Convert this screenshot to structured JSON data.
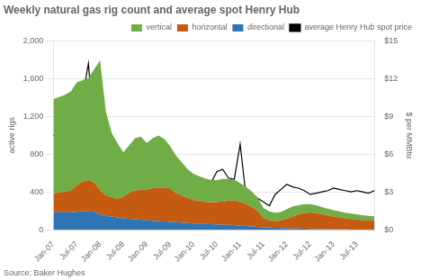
{
  "chart_data": {
    "type": "area",
    "title": "Weekly natural gas rig count and average spot Henry Hub",
    "ylabel": "active rigs",
    "y2label": "$ per MMBtu",
    "annotations": [
      "Source: Baker Hughes"
    ],
    "stacked": true,
    "grid": true,
    "legend": "upper right",
    "categories": [
      "Jan-07",
      null,
      null,
      null,
      "Jul-07",
      null,
      null,
      null,
      "Jan-08",
      null,
      null,
      null,
      "Jul-08",
      null,
      null,
      null,
      "Jan-09",
      null,
      null,
      null,
      "Jul-09",
      null,
      null,
      null,
      "Jan-10",
      null,
      null,
      null,
      "Jul-10",
      null,
      null,
      null,
      "Jan-11",
      null,
      null,
      null,
      "Jul-11",
      null,
      null,
      null,
      "Jan-12",
      null,
      null,
      null,
      "Jul-12",
      null,
      null,
      null,
      "Jan-13",
      null,
      null,
      null,
      "Jul-13",
      null,
      null,
      null
    ],
    "ylim": [
      0,
      2000
    ],
    "yticks": [
      0,
      400,
      800,
      {
        "value": 1200,
        "label": "1,200"
      },
      {
        "value": 1600,
        "label": "1,600"
      },
      {
        "value": 2000,
        "label": "2,000"
      }
    ],
    "y2lim": [
      0,
      15
    ],
    "y2ticks": [
      {
        "value": 0,
        "label": "$0"
      },
      {
        "value": 3,
        "label": "$3"
      },
      {
        "value": 6,
        "label": "$6"
      },
      {
        "value": 9,
        "label": "$9"
      },
      {
        "value": 12,
        "label": "$12"
      },
      {
        "value": 15,
        "label": "$15"
      }
    ],
    "series": [
      {
        "name": "directional",
        "type": "area",
        "color": "#2e75b6",
        "values": [
          185,
          185,
          185,
          185,
          190,
          195,
          195,
          190,
          160,
          145,
          140,
          130,
          120,
          115,
          110,
          105,
          100,
          95,
          90,
          88,
          85,
          80,
          75,
          70,
          65,
          63,
          60,
          58,
          55,
          52,
          50,
          48,
          42,
          38,
          35,
          30,
          25,
          22,
          20,
          18,
          16,
          14,
          12,
          10,
          8,
          6,
          5,
          4,
          4,
          4,
          3,
          2,
          2,
          2,
          2,
          2
        ]
      },
      {
        "name": "horizontal",
        "type": "area",
        "color": "#c55a11",
        "values": [
          200,
          210,
          220,
          230,
          280,
          315,
          330,
          310,
          255,
          215,
          205,
          195,
          230,
          275,
          305,
          315,
          325,
          345,
          355,
          360,
          345,
          310,
          285,
          265,
          250,
          240,
          235,
          232,
          238,
          248,
          258,
          262,
          255,
          235,
          205,
          170,
          95,
          75,
          72,
          78,
          100,
          125,
          148,
          168,
          175,
          170,
          158,
          148,
          135,
          125,
          118,
          110,
          105,
          100,
          95,
          92
        ]
      },
      {
        "name": "vertical",
        "type": "area",
        "color": "#70ad47",
        "values": [
          1000,
          1010,
          1025,
          1050,
          1090,
          1075,
          1080,
          1200,
          1380,
          890,
          680,
          590,
          470,
          505,
          555,
          565,
          495,
          528,
          552,
          515,
          455,
          395,
          355,
          305,
          278,
          262,
          248,
          238,
          232,
          238,
          232,
          222,
          196,
          182,
          165,
          140,
          110,
          96,
          88,
          92,
          102,
          108,
          98,
          92,
          88,
          82,
          76,
          70,
          68,
          65,
          60,
          58,
          55,
          52,
          50,
          48
        ]
      },
      {
        "name": "average Henry Hub spot price",
        "type": "line",
        "axis": "y2",
        "color": "#000000",
        "values": [
          7.5,
          7.3,
          6.8,
          7.2,
          8.8,
          10.5,
          13.2,
          7.5,
          5.2,
          3.8,
          3.4,
          4.6,
          5.9,
          4.2,
          4.6,
          3.9,
          4.6,
          4.3,
          4.4,
          3.8,
          3.2,
          2.2,
          2.8,
          3.6,
          3.5,
          4.1,
          3.8,
          3.7,
          4.6,
          4.8,
          4.1,
          4.0,
          6.8,
          2.7,
          2.8,
          2.5,
          2.2,
          1.9,
          2.8,
          3.2,
          3.6,
          3.4,
          3.3,
          3.1,
          2.8,
          2.9,
          3.0,
          3.1,
          3.3,
          3.2,
          3.1,
          3.0,
          3.1,
          3.0,
          2.9,
          3.1
        ]
      }
    ]
  }
}
